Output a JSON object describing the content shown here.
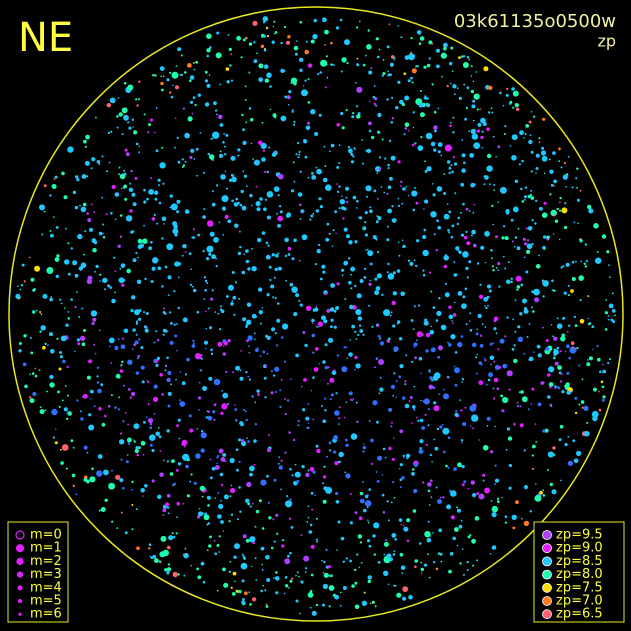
{
  "label": "NE",
  "title": "03k61135o0500w",
  "subtitle": "zp",
  "magnitude_legend": [
    "m=0",
    "m=1",
    "m=2",
    "m=3",
    "m=4",
    "m=5",
    "m=6"
  ],
  "zp_legend": [
    {
      "label": "zp=9.5",
      "color": "#b040ff"
    },
    {
      "label": "zp=9.0",
      "color": "#e020ff"
    },
    {
      "label": "zp=8.5",
      "color": "#20c8ff"
    },
    {
      "label": "zp=8.0",
      "color": "#20ffb0"
    },
    {
      "label": "zp=7.5",
      "color": "#ffe000"
    },
    {
      "label": "zp=7.0",
      "color": "#ff7a20"
    },
    {
      "label": "zp=6.5",
      "color": "#ff6070"
    }
  ]
}
